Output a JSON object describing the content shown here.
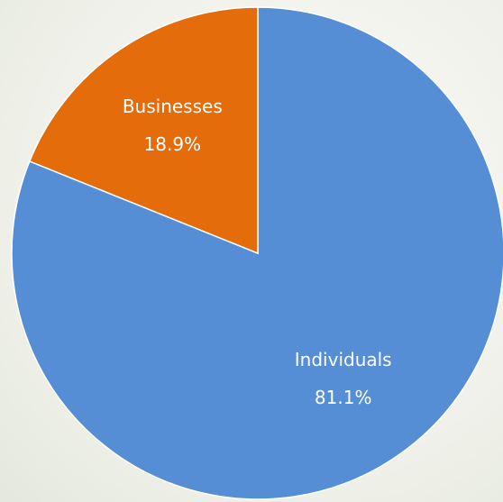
{
  "chart_data": {
    "type": "pie",
    "categories": [
      "Individuals",
      "Businesses"
    ],
    "values": [
      81.1,
      18.9
    ],
    "value_labels": [
      "81.1%",
      "18.9%"
    ],
    "colors": [
      "#558ed5",
      "#e46c0a"
    ],
    "start": "top",
    "direction": "clockwise"
  }
}
